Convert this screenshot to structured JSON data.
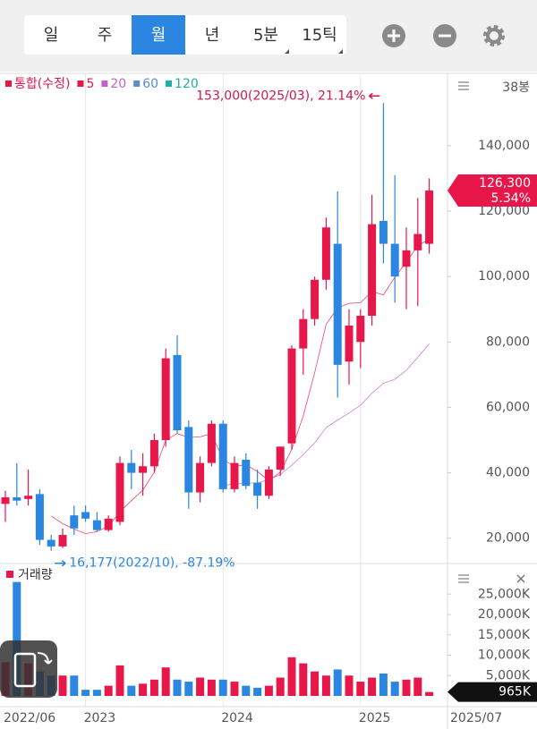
{
  "toolbar": {
    "tabs": [
      "일",
      "주",
      "월",
      "년",
      "5분",
      "15틱"
    ],
    "active": 2
  },
  "chart_data": [
    {
      "type": "candlestick",
      "legend": [
        {
          "name": "통합(수정)",
          "color": "#e8174a"
        },
        {
          "name": "5",
          "color": "#e8174a"
        },
        {
          "name": "20",
          "color": "#c060c8"
        },
        {
          "name": "60",
          "color": "#5a8cc8"
        },
        {
          "name": "120",
          "color": "#20b0a0"
        }
      ],
      "count_label": "38봉",
      "up_color": "#e8174a",
      "down_color": "#2a86e0",
      "categories": [
        "2022/06",
        null,
        null,
        null,
        null,
        null,
        null,
        "2023",
        null,
        null,
        null,
        null,
        null,
        null,
        null,
        null,
        null,
        null,
        null,
        "2024",
        null,
        null,
        null,
        null,
        null,
        null,
        null,
        null,
        null,
        null,
        null,
        "2025",
        null,
        null,
        null,
        null,
        null,
        "2025/07"
      ],
      "open": [
        30500,
        32500,
        32000,
        33500,
        19500,
        17500,
        27000,
        28000,
        25500,
        22500,
        25000,
        43000,
        40000,
        42000,
        50000,
        76000,
        54000,
        34000,
        43000,
        55000,
        35000,
        44000,
        37000,
        33000,
        41000,
        49000,
        78000,
        87000,
        99000,
        110000,
        74000,
        80000,
        88000,
        117000,
        110000,
        103000,
        108000,
        110000
      ],
      "high": [
        34500,
        43000,
        41000,
        35000,
        21000,
        23000,
        30000,
        30000,
        28000,
        27000,
        45000,
        47000,
        46000,
        52000,
        78000,
        82000,
        56000,
        45000,
        56000,
        56000,
        45000,
        46000,
        41000,
        42000,
        48000,
        79000,
        90000,
        100000,
        118000,
        126000,
        90000,
        90000,
        125000,
        153000,
        131000,
        115000,
        124000,
        130000
      ],
      "low": [
        25000,
        30000,
        30000,
        18000,
        16177,
        17000,
        21000,
        25000,
        22000,
        22000,
        24000,
        35000,
        33000,
        40000,
        48000,
        52000,
        29000,
        31000,
        42000,
        34000,
        34000,
        35000,
        29000,
        32000,
        39000,
        47000,
        70000,
        85000,
        96000,
        63000,
        67000,
        72000,
        85000,
        104000,
        92000,
        90000,
        91000,
        107000
      ],
      "close": [
        32500,
        31500,
        33000,
        19500,
        17500,
        21000,
        23000,
        26000,
        22500,
        26000,
        43000,
        40000,
        42000,
        50000,
        75000,
        53000,
        34000,
        43000,
        55000,
        35000,
        43000,
        36000,
        33000,
        41000,
        48000,
        78000,
        87000,
        99000,
        115000,
        73000,
        85000,
        88000,
        116000,
        110000,
        100000,
        108000,
        113000,
        126300
      ],
      "max_label": "153,000(2025/03), 21.14%",
      "min_label": "16,177(2022/10), -87.19%",
      "last_label": "126,300",
      "change_label": "5.34%",
      "ylim": [
        12000,
        158000
      ],
      "yticks": [
        {
          "value": 20000,
          "label": "20,000"
        },
        {
          "value": 40000,
          "label": "40,000"
        },
        {
          "value": 60000,
          "label": "60,000"
        },
        {
          "value": 80000,
          "label": "80,000"
        },
        {
          "value": 100000,
          "label": "100,000"
        },
        {
          "value": 120000,
          "label": "120,000"
        },
        {
          "value": 140000,
          "label": "140,000"
        }
      ]
    },
    {
      "type": "bar",
      "title": "거래량",
      "values": [
        8300,
        28000,
        8000,
        6000,
        5000,
        5000,
        5000,
        1500,
        1500,
        2500,
        7500,
        2500,
        3000,
        4000,
        7000,
        4000,
        3500,
        4500,
        4000,
        4000,
        3500,
        2500,
        2000,
        2500,
        4500,
        9500,
        8000,
        6000,
        5000,
        6500,
        5000,
        3500,
        4500,
        5500,
        3500,
        4000,
        4500,
        965
      ],
      "last_label": "965K",
      "ylim": [
        0,
        30000
      ],
      "yticks": [
        {
          "value": 5000,
          "label": "5,000K"
        },
        {
          "value": 10000,
          "label": "10,000K"
        },
        {
          "value": 15000,
          "label": "15,000K"
        },
        {
          "value": 20000,
          "label": "20,000K"
        },
        {
          "value": 25000,
          "label": "25,000K"
        }
      ]
    }
  ]
}
